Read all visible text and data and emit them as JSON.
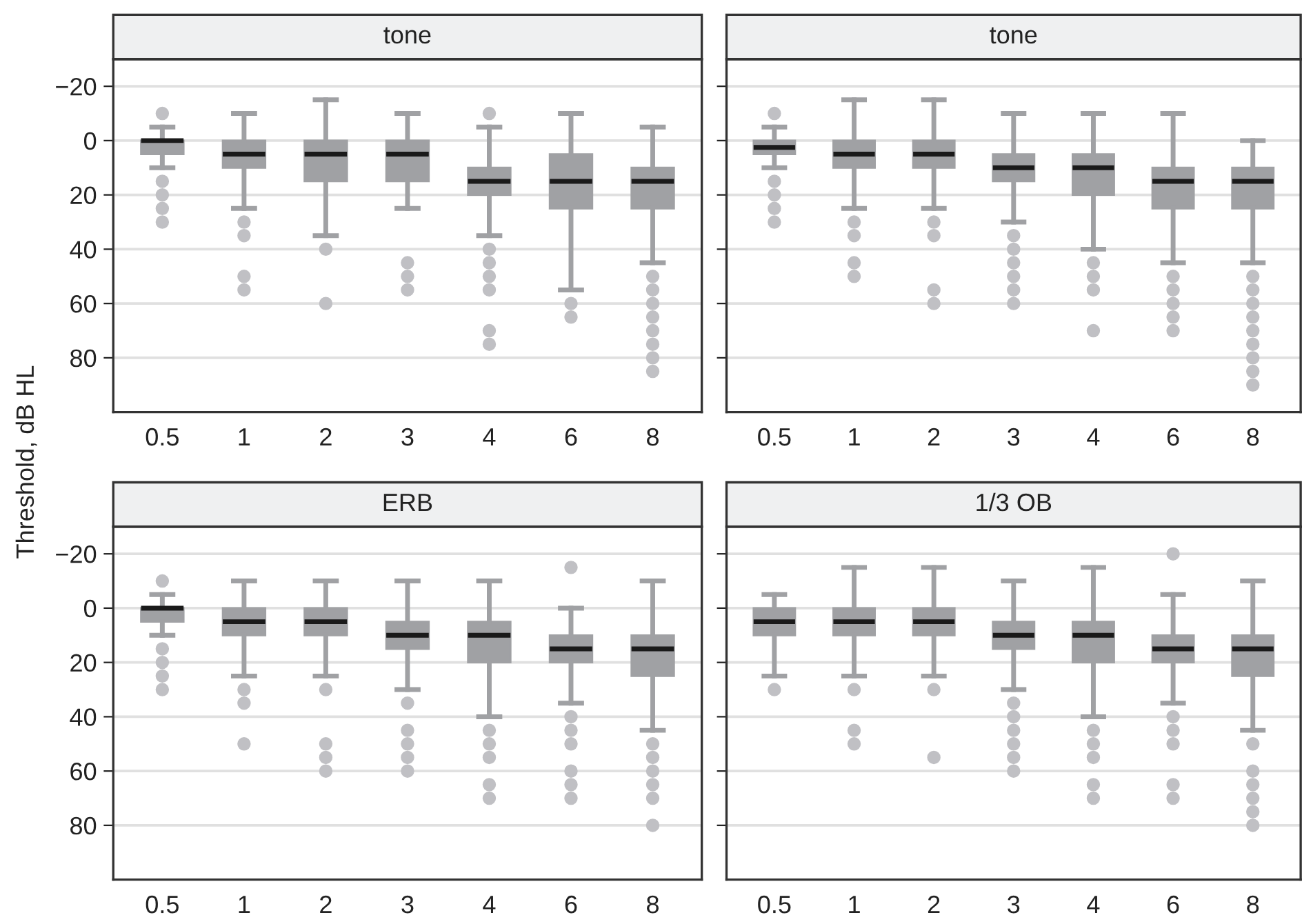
{
  "chart_data": [
    {
      "type": "box",
      "title": "tone",
      "ylabel": "Threshold, dB HL",
      "categories": [
        "0.5",
        "1",
        "2",
        "3",
        "4",
        "6",
        "8"
      ],
      "ylim": [
        100,
        -30
      ],
      "yticks": [
        {
          "value": -20,
          "label": "−20"
        },
        0,
        20,
        40,
        60,
        80
      ],
      "grid": "y",
      "tick_labels": true,
      "series": [
        {
          "color": "#a0a1a4",
          "boxes": [
            {
              "low": -5,
              "q1": 0,
              "median": 0,
              "q3": 5,
              "high": 10,
              "outliers": [
                -10,
                15,
                20,
                25,
                30
              ]
            },
            {
              "low": -10,
              "q1": 0,
              "median": 5,
              "q3": 10,
              "high": 25,
              "outliers": [
                30,
                35,
                50,
                55
              ]
            },
            {
              "low": -15,
              "q1": 0,
              "median": 5,
              "q3": 15,
              "high": 35,
              "outliers": [
                40,
                60
              ]
            },
            {
              "low": -10,
              "q1": 0,
              "median": 5,
              "q3": 15,
              "high": 25,
              "outliers": [
                45,
                50,
                55
              ]
            },
            {
              "low": -5,
              "q1": 10,
              "median": 15,
              "q3": 20,
              "high": 35,
              "outliers": [
                -10,
                40,
                45,
                50,
                55,
                70,
                75
              ]
            },
            {
              "low": -10,
              "q1": 5,
              "median": 15,
              "q3": 25,
              "high": 55,
              "outliers": [
                60,
                65
              ]
            },
            {
              "low": -5,
              "q1": 10,
              "median": 15,
              "q3": 25,
              "high": 45,
              "outliers": [
                50,
                55,
                60,
                65,
                70,
                75,
                80,
                85
              ]
            }
          ]
        }
      ]
    },
    {
      "type": "box",
      "title": "tone",
      "categories": [
        "0.5",
        "1",
        "2",
        "3",
        "4",
        "6",
        "8"
      ],
      "ylim": [
        100,
        -30
      ],
      "yticks": [
        {
          "value": -20,
          "label": null
        },
        {
          "value": 0,
          "label": null
        },
        {
          "value": 20,
          "label": null
        },
        {
          "value": 40,
          "label": null
        },
        {
          "value": 60,
          "label": null
        },
        {
          "value": 80,
          "label": null
        }
      ],
      "grid": "y",
      "tick_labels": "x",
      "series": [
        {
          "color": "#a0a1a4",
          "boxes": [
            {
              "low": -5,
              "q1": 0,
              "median": 2.5,
              "q3": 5,
              "high": 10,
              "outliers": [
                -10,
                15,
                20,
                25,
                30
              ]
            },
            {
              "low": -15,
              "q1": 0,
              "median": 5,
              "q3": 10,
              "high": 25,
              "outliers": [
                30,
                35,
                45,
                50
              ]
            },
            {
              "low": -15,
              "q1": 0,
              "median": 5,
              "q3": 10,
              "high": 25,
              "outliers": [
                30,
                35,
                55,
                60
              ]
            },
            {
              "low": -10,
              "q1": 5,
              "median": 10,
              "q3": 15,
              "high": 30,
              "outliers": [
                35,
                40,
                45,
                50,
                55,
                60
              ]
            },
            {
              "low": -10,
              "q1": 5,
              "median": 10,
              "q3": 20,
              "high": 40,
              "outliers": [
                45,
                50,
                55,
                70
              ]
            },
            {
              "low": -10,
              "q1": 10,
              "median": 15,
              "q3": 25,
              "high": 45,
              "outliers": [
                50,
                55,
                60,
                65,
                70
              ]
            },
            {
              "low": 0,
              "q1": 10,
              "median": 15,
              "q3": 25,
              "high": 45,
              "outliers": [
                50,
                55,
                60,
                65,
                70,
                75,
                80,
                85,
                90
              ]
            }
          ]
        }
      ]
    },
    {
      "type": "box",
      "title": "ERB",
      "categories": [
        "0.5",
        "1",
        "2",
        "3",
        "4",
        "6",
        "8"
      ],
      "ylim": [
        100,
        -30
      ],
      "yticks": [
        {
          "value": -20,
          "label": "−20"
        },
        0,
        20,
        40,
        60,
        80
      ],
      "grid": "y",
      "tick_labels": true,
      "series": [
        {
          "color": "#a0a1a4",
          "boxes": [
            {
              "low": -5,
              "q1": 0,
              "median": 0,
              "q3": 5,
              "high": 10,
              "outliers": [
                -10,
                15,
                20,
                25,
                30
              ]
            },
            {
              "low": -10,
              "q1": 0,
              "median": 5,
              "q3": 10,
              "high": 25,
              "outliers": [
                30,
                35,
                50
              ]
            },
            {
              "low": -10,
              "q1": 0,
              "median": 5,
              "q3": 10,
              "high": 25,
              "outliers": [
                30,
                50,
                55,
                60
              ]
            },
            {
              "low": -10,
              "q1": 5,
              "median": 10,
              "q3": 15,
              "high": 30,
              "outliers": [
                35,
                45,
                50,
                55,
                60
              ]
            },
            {
              "low": -10,
              "q1": 5,
              "median": 10,
              "q3": 20,
              "high": 40,
              "outliers": [
                45,
                50,
                55,
                65,
                70
              ]
            },
            {
              "low": 0,
              "q1": 10,
              "median": 15,
              "q3": 20,
              "high": 35,
              "outliers": [
                -15,
                40,
                45,
                50,
                60,
                65,
                70
              ]
            },
            {
              "low": -10,
              "q1": 10,
              "median": 15,
              "q3": 25,
              "high": 45,
              "outliers": [
                50,
                55,
                60,
                65,
                70,
                80
              ]
            }
          ]
        }
      ]
    },
    {
      "type": "box",
      "title": "1/3 OB",
      "categories": [
        "0.5",
        "1",
        "2",
        "3",
        "4",
        "6",
        "8"
      ],
      "ylim": [
        100,
        -30
      ],
      "yticks": [
        {
          "value": -20,
          "label": null
        },
        {
          "value": 0,
          "label": null
        },
        {
          "value": 20,
          "label": null
        },
        {
          "value": 40,
          "label": null
        },
        {
          "value": 60,
          "label": null
        },
        {
          "value": 80,
          "label": null
        }
      ],
      "grid": "y",
      "tick_labels": "x",
      "series": [
        {
          "color": "#a0a1a4",
          "boxes": [
            {
              "low": -5,
              "q1": 0,
              "median": 5,
              "q3": 10,
              "high": 25,
              "outliers": [
                30
              ]
            },
            {
              "low": -15,
              "q1": 0,
              "median": 5,
              "q3": 10,
              "high": 25,
              "outliers": [
                30,
                45,
                50
              ]
            },
            {
              "low": -15,
              "q1": 0,
              "median": 5,
              "q3": 10,
              "high": 25,
              "outliers": [
                30,
                55
              ]
            },
            {
              "low": -10,
              "q1": 5,
              "median": 10,
              "q3": 15,
              "high": 30,
              "outliers": [
                35,
                40,
                45,
                50,
                55,
                60
              ]
            },
            {
              "low": -15,
              "q1": 5,
              "median": 10,
              "q3": 20,
              "high": 40,
              "outliers": [
                45,
                50,
                55,
                65,
                70
              ]
            },
            {
              "low": -5,
              "q1": 10,
              "median": 15,
              "q3": 20,
              "high": 35,
              "outliers": [
                -20,
                40,
                45,
                50,
                65,
                70
              ]
            },
            {
              "low": -10,
              "q1": 10,
              "median": 15,
              "q3": 25,
              "high": 45,
              "outliers": [
                50,
                60,
                65,
                70,
                75,
                80
              ]
            }
          ]
        }
      ]
    }
  ]
}
